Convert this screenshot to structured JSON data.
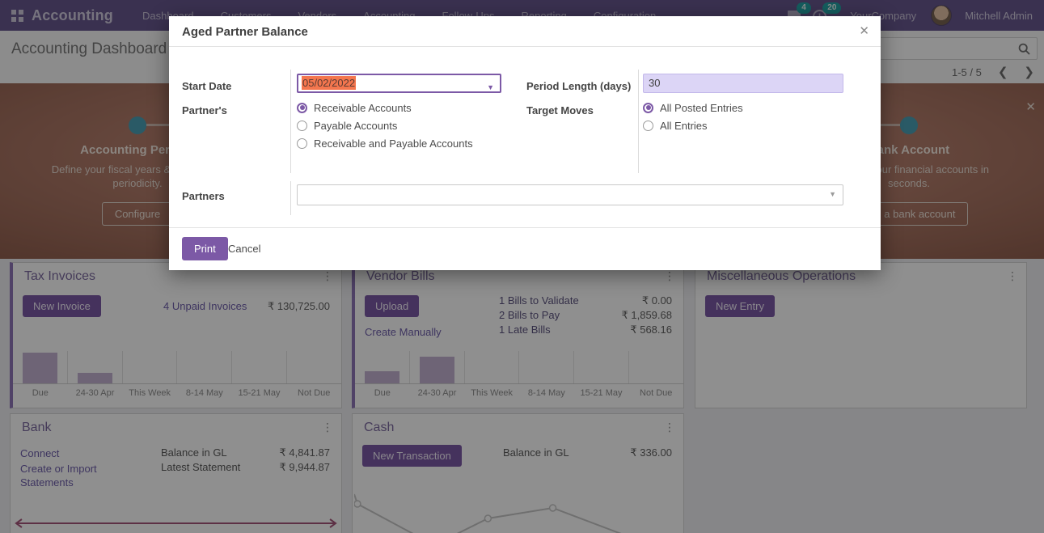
{
  "navbar": {
    "brand": "Accounting",
    "menus": [
      "Dashboard",
      "Customers",
      "Vendors",
      "Accounting",
      "Follow-Ups",
      "Reporting",
      "Configuration"
    ],
    "messages_badge": "4",
    "activities_badge": "20",
    "company": "YourCompany",
    "user": "Mitchell Admin"
  },
  "control_panel": {
    "title": "Accounting Dashboard",
    "pager": "1-5 / 5"
  },
  "banner": {
    "left": {
      "title": "Accounting Periods",
      "desc": "Define your fiscal years & tax returns periodicity.",
      "button": "Configure"
    },
    "right": {
      "title": "Bank Account",
      "desc": "Connect your financial accounts in seconds.",
      "button": "Add a bank account"
    }
  },
  "modal": {
    "title": "Aged Partner Balance",
    "fields": {
      "start_date": {
        "label": "Start Date",
        "value": "05/02/2022"
      },
      "period_length": {
        "label": "Period Length (days)",
        "value": "30"
      },
      "partners_type": {
        "label": "Partner's",
        "options": [
          "Receivable Accounts",
          "Payable Accounts",
          "Receivable and Payable Accounts"
        ],
        "selected": 0
      },
      "target_moves": {
        "label": "Target Moves",
        "options": [
          "All Posted Entries",
          "All Entries"
        ],
        "selected": 0
      },
      "partners": {
        "label": "Partners",
        "value": ""
      }
    },
    "footer": {
      "print": "Print",
      "cancel": "Cancel"
    }
  },
  "cards": {
    "tax_invoices": {
      "title": "Tax Invoices",
      "button": "New Invoice",
      "link": "4 Unpaid Invoices",
      "amount": "₹ 130,725.00",
      "chart": {
        "type": "bar",
        "categories": [
          "Due",
          "24-30 Apr",
          "This Week",
          "8-14 May",
          "15-21 May",
          "Not Due"
        ],
        "values": [
          38,
          13,
          0,
          0,
          0,
          0
        ]
      }
    },
    "vendor_bills": {
      "title": "Vendor Bills",
      "button": "Upload",
      "link": "Create Manually",
      "rows": [
        {
          "label": "1 Bills to Validate",
          "amount": "₹ 0.00"
        },
        {
          "label": "2 Bills to Pay",
          "amount": "₹ 1,859.68"
        },
        {
          "label": "1 Late Bills",
          "amount": "₹ 568.16"
        }
      ],
      "chart": {
        "type": "bar",
        "categories": [
          "Due",
          "24-30 Apr",
          "This Week",
          "8-14 May",
          "15-21 May",
          "Not Due"
        ],
        "values": [
          15,
          33,
          0,
          0,
          0,
          0
        ]
      }
    },
    "misc_operations": {
      "title": "Miscellaneous Operations",
      "button": "New Entry"
    },
    "bank": {
      "title": "Bank",
      "links": [
        "Connect",
        "Create or Import Statements"
      ],
      "rows": [
        {
          "label": "Balance in GL",
          "amount": "₹ 4,841.87"
        },
        {
          "label": "Latest Statement",
          "amount": "₹ 9,944.87"
        }
      ],
      "chart": {
        "type": "line",
        "color": "#a6567b",
        "view": [
          407,
          20
        ],
        "series": [
          {
            "points": [
              [
                6,
                10
              ],
              [
                401,
                10
              ]
            ]
          },
          {
            "points": [
              [
                12,
                5
              ],
              [
                5,
                10
              ],
              [
                12,
                15
              ]
            ]
          },
          {
            "points": [
              [
                395,
                5
              ],
              [
                402,
                10
              ],
              [
                395,
                15
              ]
            ]
          }
        ]
      }
    },
    "cash": {
      "title": "Cash",
      "button": "New Transaction",
      "rows": [
        {
          "label": "Balance in GL",
          "amount": "₹ 336.00"
        }
      ],
      "chart": {
        "type": "line",
        "color": "#c6c6c6",
        "view": [
          409,
          148
        ],
        "series": [
          {
            "points": [
              [
                0,
                100
              ],
              [
                4,
                112
              ],
              [
                100,
                163
              ],
              [
                167,
                130
              ],
              [
                248,
                117
              ],
              [
                395,
                172
              ]
            ],
            "markers": [
              1,
              3,
              4
            ]
          }
        ]
      }
    }
  }
}
